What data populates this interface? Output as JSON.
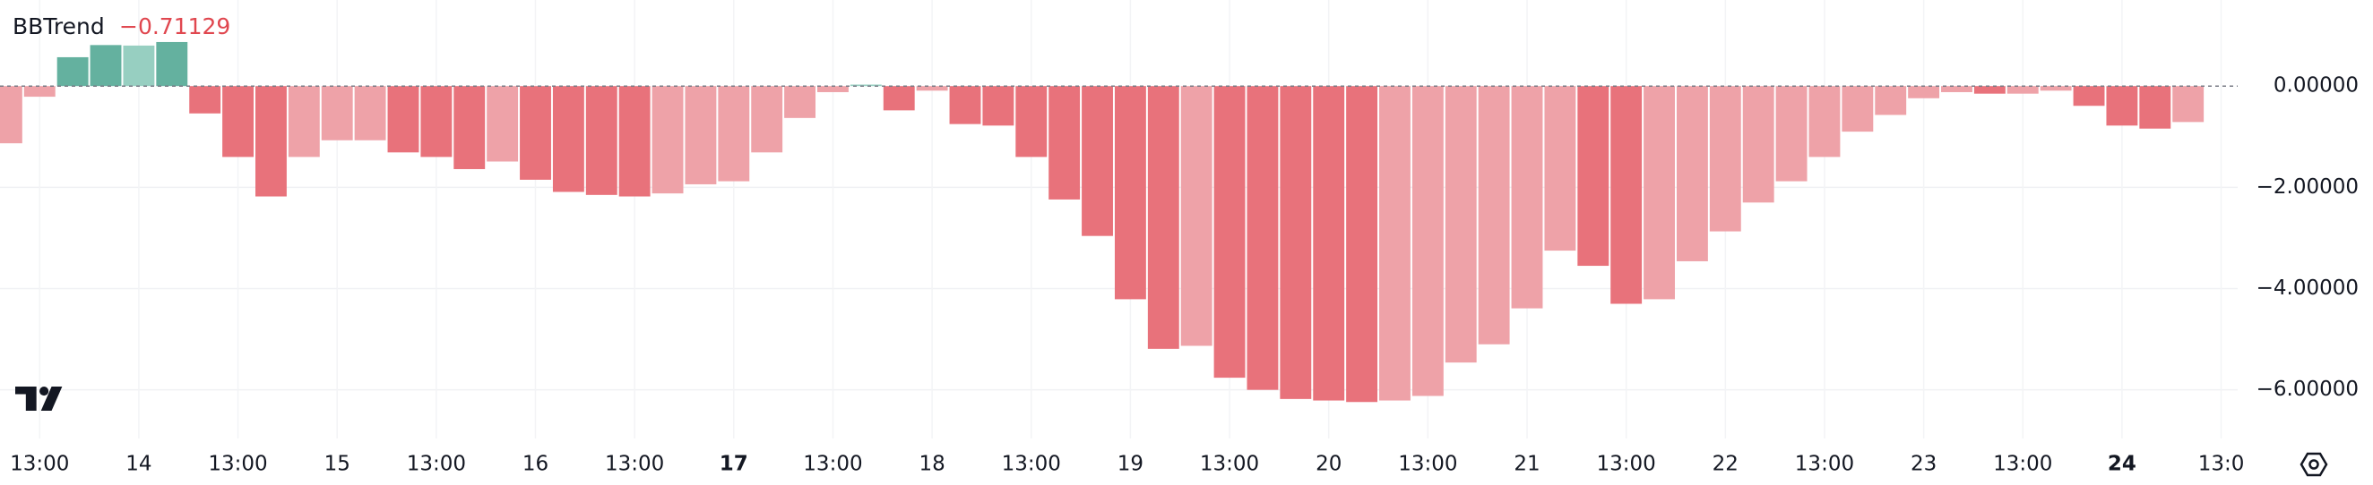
{
  "chart_data": {
    "type": "bar",
    "title": "BBTrend",
    "legend_value": "−0.71129",
    "values": [
      -1.13,
      -0.21,
      0.57,
      0.81,
      0.8,
      0.87,
      -0.54,
      -1.4,
      -2.18,
      -1.4,
      -1.07,
      -1.07,
      -1.31,
      -1.4,
      -1.64,
      -1.49,
      -1.85,
      -2.09,
      -2.15,
      -2.18,
      -2.12,
      -1.94,
      -1.88,
      -1.31,
      -0.63,
      -0.12,
      0.03,
      -0.48,
      -0.09,
      -0.75,
      -0.78,
      -1.4,
      -2.24,
      -2.96,
      -4.21,
      -5.19,
      -5.13,
      -5.76,
      -6.0,
      -6.18,
      -6.21,
      -6.24,
      -6.21,
      -6.12,
      -5.46,
      -5.1,
      -4.39,
      -3.25,
      -3.55,
      -4.3,
      -4.21,
      -3.46,
      -2.87,
      -2.3,
      -1.88,
      -1.4,
      -0.9,
      -0.57,
      -0.24,
      -0.12,
      -0.15,
      -0.15,
      -0.09,
      -0.39,
      -0.78,
      -0.84,
      -0.71
    ],
    "colors": [
      "#eea2a8",
      "#eea2a8",
      "#64b19f",
      "#64b19f",
      "#97cfc1",
      "#64b19f",
      "#e8727b",
      "#e8727b",
      "#e8727b",
      "#eea2a8",
      "#eea2a8",
      "#eea2a8",
      "#e8727b",
      "#e8727b",
      "#e8727b",
      "#eea2a8",
      "#e8727b",
      "#e8727b",
      "#e8727b",
      "#e8727b",
      "#eea2a8",
      "#eea2a8",
      "#eea2a8",
      "#eea2a8",
      "#eea2a8",
      "#eea2a8",
      "#97cfc1",
      "#e8727b",
      "#eea2a8",
      "#e8727b",
      "#e8727b",
      "#e8727b",
      "#e8727b",
      "#e8727b",
      "#e8727b",
      "#e8727b",
      "#eea2a8",
      "#e8727b",
      "#e8727b",
      "#e8727b",
      "#e8727b",
      "#e8727b",
      "#eea2a8",
      "#eea2a8",
      "#eea2a8",
      "#eea2a8",
      "#eea2a8",
      "#eea2a8",
      "#e8727b",
      "#e8727b",
      "#eea2a8",
      "#eea2a8",
      "#eea2a8",
      "#eea2a8",
      "#eea2a8",
      "#eea2a8",
      "#eea2a8",
      "#eea2a8",
      "#eea2a8",
      "#eea2a8",
      "#e8727b",
      "#eea2a8",
      "#eea2a8",
      "#e8727b",
      "#e8727b",
      "#e8727b",
      "#eea2a8"
    ],
    "xlim": [
      -0.2,
      67.5
    ],
    "xticks": [
      {
        "value": 1,
        "label": "13:00"
      },
      {
        "value": 4,
        "label": "14"
      },
      {
        "value": 7,
        "label": "13:00"
      },
      {
        "value": 10,
        "label": "15"
      },
      {
        "value": 13,
        "label": "13:00"
      },
      {
        "value": 16,
        "label": "16"
      },
      {
        "value": 19,
        "label": "13:00"
      },
      {
        "value": 22,
        "label": "17"
      },
      {
        "value": 25,
        "label": "13:00"
      },
      {
        "value": 28,
        "label": "18"
      },
      {
        "value": 31,
        "label": "13:00"
      },
      {
        "value": 34,
        "label": "19"
      },
      {
        "value": 37,
        "label": "13:00"
      },
      {
        "value": 40,
        "label": "20"
      },
      {
        "value": 43,
        "label": "13:00"
      },
      {
        "value": 46,
        "label": "21"
      },
      {
        "value": 49,
        "label": "13:00"
      },
      {
        "value": 52,
        "label": "22"
      },
      {
        "value": 55,
        "label": "13:00"
      },
      {
        "value": 58,
        "label": "23"
      },
      {
        "value": 61,
        "label": "13:00"
      },
      {
        "value": 64,
        "label": "24"
      },
      {
        "value": 67,
        "label": "13:0"
      }
    ],
    "bold_xticks": [
      7,
      21
    ],
    "ylim": [
      -6.96,
      1.7
    ],
    "yticks": [
      {
        "value": 0,
        "label": "0.00000"
      },
      {
        "value": -2,
        "label": "−2.00000"
      },
      {
        "value": -4,
        "label": "−4.00000"
      },
      {
        "value": -6,
        "label": "−6.00000"
      }
    ],
    "grid": true,
    "value_color": "#e0474f"
  }
}
